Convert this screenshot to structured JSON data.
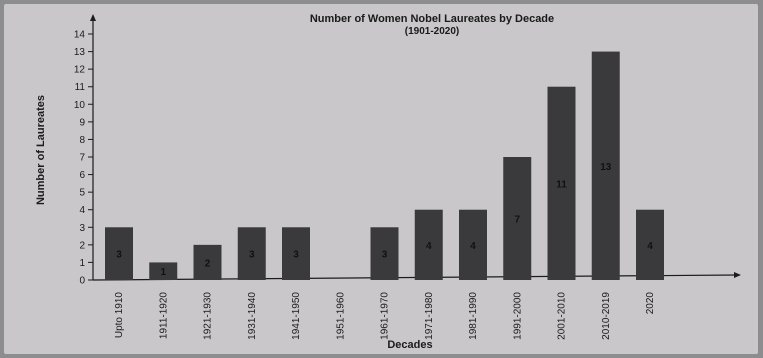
{
  "chart_data": {
    "type": "bar",
    "title": "Number of Women Nobel Laureates by Decade",
    "subtitle": "(1901-2020)",
    "xlabel": "Decades",
    "ylabel": "Number of Laureates",
    "categories": [
      "Upto 1910",
      "1911-1920",
      "1921-1930",
      "1931-1940",
      "1941-1950",
      "1951-1960",
      "1961-1970",
      "1971-1980",
      "1981-1990",
      "1991-2000",
      "2001-2010",
      "2010-2019",
      "2020"
    ],
    "values": [
      3,
      1,
      2,
      3,
      3,
      0,
      3,
      4,
      4,
      7,
      11,
      13,
      4
    ],
    "data_labels": [
      "3",
      "1",
      "2",
      "3",
      "3",
      "",
      "3",
      "4",
      "4",
      "7",
      "11",
      "13",
      "4"
    ],
    "ylim": [
      0,
      14
    ],
    "yticks": [
      0,
      1,
      2,
      3,
      4,
      5,
      6,
      7,
      8,
      9,
      10,
      11,
      12,
      13,
      14
    ],
    "grid": false,
    "legend": "none",
    "colors": {
      "bar": "#3a3a3c",
      "paper": "#c9c7c9",
      "ink": "#1c1c1c"
    }
  }
}
